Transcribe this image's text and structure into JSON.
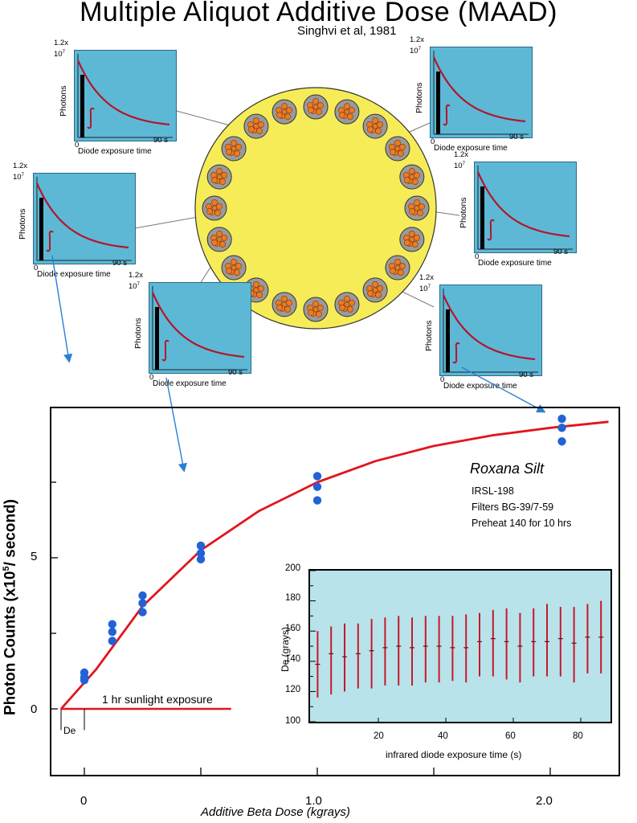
{
  "title": "Multiple Aliquot Additive Dose (MAAD)",
  "subtitle": "Singhvi et al, 1981",
  "decay_panel": {
    "y_top_label": "1.2x",
    "y_exp_label": "10",
    "y_exp_sup": "7",
    "x_start": "0",
    "x_end": "90 s",
    "ylabel": "Photons",
    "xlabel": "Diode exposure time"
  },
  "colors": {
    "panel_bg": "#5db8d6",
    "decay_curve": "#b3162a",
    "disc_fill": "#f6ec58",
    "aliquot_fill": "#9a9a9a",
    "grain_fill": "#ef7a21",
    "growth_curve": "#e0161d",
    "data_point": "#2362d6",
    "arrow": "#2a7fd4",
    "inset_bg": "#b8e3ea"
  },
  "main_chart": {
    "ylabel": "Photon Counts (x10",
    "ylabel_sup": "5",
    "ylabel_end": "/ second)",
    "xlabel": "Additive Beta Dose (kgrays)",
    "sample_name": "Roxana Silt",
    "notes": [
      "IRSL-198",
      "Filters BG-39/7-59",
      "Preheat 140 for 10 hrs"
    ],
    "sunlight_label": "1 hr sunlight exposure",
    "de_label": "De"
  },
  "chart_data": [
    {
      "type": "scatter",
      "xlabel": "Additive Beta Dose (kgrays)",
      "ylabel": "Photon Counts (x10^5/ second)",
      "x_ticks": [
        "0",
        "1.0",
        "2.0"
      ],
      "y_ticks": [
        "0",
        "5"
      ],
      "xlim": [
        -0.1,
        2.4
      ],
      "ylim": [
        -2.3,
        10
      ],
      "series": [
        {
          "name": "",
          "points": [
            [
              0,
              1.2
            ],
            [
              0,
              1.05
            ],
            [
              0,
              0.95
            ],
            [
              0.12,
              2.8
            ],
            [
              0.12,
              2.55
            ],
            [
              0.12,
              2.25
            ],
            [
              0.25,
              3.75
            ],
            [
              0.25,
              3.5
            ],
            [
              0.25,
              3.2
            ],
            [
              0.5,
              5.4
            ],
            [
              0.5,
              5.15
            ],
            [
              0.5,
              4.95
            ],
            [
              1.0,
              7.7
            ],
            [
              1.0,
              7.35
            ],
            [
              1.0,
              6.9
            ],
            [
              2.05,
              9.6
            ],
            [
              2.05,
              9.3
            ],
            [
              2.05,
              8.85
            ]
          ]
        }
      ],
      "fit_curve": [
        [
          -0.1,
          0
        ],
        [
          0.05,
          1.3
        ],
        [
          0.25,
          3.4
        ],
        [
          0.5,
          5.25
        ],
        [
          0.75,
          6.55
        ],
        [
          1.0,
          7.5
        ],
        [
          1.25,
          8.2
        ],
        [
          1.5,
          8.7
        ],
        [
          1.75,
          9.05
        ],
        [
          2.0,
          9.3
        ],
        [
          2.25,
          9.5
        ]
      ],
      "sunlight_line": [
        [
          -0.1,
          0
        ],
        [
          0.63,
          0
        ]
      ]
    },
    {
      "type": "scatter",
      "xlabel": "infrared diode exposure time (s)",
      "ylabel": "De (grays)",
      "x_ticks": [
        "20",
        "40",
        "60",
        "80"
      ],
      "y_ticks": [
        "100",
        "120",
        "140",
        "160",
        "180",
        "200"
      ],
      "xlim": [
        0,
        90
      ],
      "ylim": [
        100,
        200
      ],
      "series": [
        {
          "name": "",
          "x": [
            2,
            6,
            10,
            14,
            18,
            22,
            26,
            30,
            34,
            38,
            42,
            46,
            50,
            54,
            58,
            62,
            66,
            70,
            74,
            78,
            82,
            86
          ],
          "y": [
            138,
            145,
            143,
            145,
            147,
            149,
            150,
            149,
            150,
            150,
            149,
            149,
            153,
            155,
            153,
            150,
            153,
            153,
            155,
            152,
            156,
            156
          ],
          "err_low": [
            116,
            118,
            120,
            122,
            122,
            124,
            124,
            124,
            126,
            126,
            127,
            126,
            130,
            130,
            128,
            126,
            130,
            130,
            130,
            126,
            132,
            132
          ],
          "err_high": [
            160,
            163,
            165,
            165,
            168,
            169,
            170,
            169,
            170,
            170,
            170,
            171,
            172,
            174,
            175,
            172,
            175,
            178,
            176,
            176,
            178,
            180
          ]
        }
      ]
    }
  ]
}
